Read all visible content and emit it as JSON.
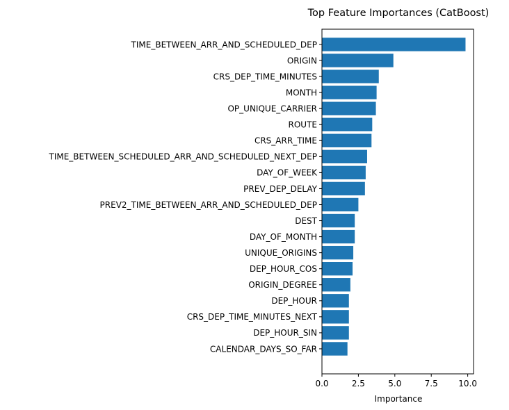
{
  "chart_data": {
    "type": "bar",
    "orientation": "horizontal",
    "title": "Top Feature Importances (CatBoost)",
    "xlabel": "Importance",
    "ylabel": "",
    "xlim": [
      0,
      10.4
    ],
    "xticks": [
      0.0,
      2.5,
      5.0,
      7.5,
      10.0
    ],
    "xtick_labels": [
      "0.0",
      "2.5",
      "5.0",
      "7.5",
      "10.0"
    ],
    "grid": false,
    "bar_color": "#1f77b4",
    "categories": [
      "TIME_BETWEEN_ARR_AND_SCHEDULED_DEP",
      "ORIGIN",
      "CRS_DEP_TIME_MINUTES",
      "MONTH",
      "OP_UNIQUE_CARRIER",
      "ROUTE",
      "CRS_ARR_TIME",
      "TIME_BETWEEN_SCHEDULED_ARR_AND_SCHEDULED_NEXT_DEP",
      "DAY_OF_WEEK",
      "PREV_DEP_DELAY",
      "PREV2_TIME_BETWEEN_ARR_AND_SCHEDULED_DEP",
      "DEST",
      "DAY_OF_MONTH",
      "UNIQUE_ORIGINS",
      "DEP_HOUR_COS",
      "ORIGIN_DEGREE",
      "DEP_HOUR",
      "CRS_DEP_TIME_MINUTES_NEXT",
      "DEP_HOUR_SIN",
      "CALENDAR_DAYS_SO_FAR"
    ],
    "values": [
      9.85,
      4.9,
      3.9,
      3.75,
      3.7,
      3.45,
      3.4,
      3.1,
      3.0,
      2.95,
      2.5,
      2.25,
      2.25,
      2.15,
      2.1,
      1.95,
      1.85,
      1.85,
      1.85,
      1.75
    ]
  }
}
